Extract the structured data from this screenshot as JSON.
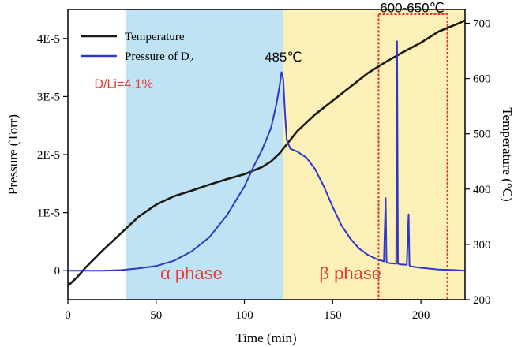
{
  "chart_data": {
    "type": "line",
    "xlabel": "Time (min)",
    "ylabel_left": "Pressure (Torr)",
    "ylabel_right": "Temperature (°C)",
    "xlim": [
      0,
      225
    ],
    "ylim_left": [
      -5e-06,
      4.5e-05
    ],
    "ylim_right": [
      200,
      725
    ],
    "x_ticks": [
      0,
      50,
      100,
      150,
      200
    ],
    "x_tick_labels": [
      "0",
      "50",
      "100",
      "150",
      "200"
    ],
    "y_left_ticks": [
      0,
      1e-05,
      2e-05,
      3e-05,
      4e-05
    ],
    "y_left_tick_labels": [
      "0",
      "1E-5",
      "2E-5",
      "3E-5",
      "4E-5"
    ],
    "y_right_ticks": [
      200,
      300,
      400,
      500,
      600,
      700
    ],
    "y_right_tick_labels": [
      "200",
      "300",
      "400",
      "500",
      "600",
      "700"
    ],
    "legend_position": "top-left",
    "colors": {
      "temperature": "#1a1a12",
      "pressure": "#2f37c8",
      "alpha_region": "#bfe3f5",
      "beta_region": "#fbf1b8",
      "annotation_red": "#e63a2e",
      "box": "#d93a2c"
    },
    "series": [
      {
        "name": "Temperature",
        "axis": "right",
        "x": [
          0,
          5,
          10,
          20,
          30,
          40,
          50,
          60,
          70,
          80,
          90,
          100,
          110,
          115,
          120,
          125,
          130,
          140,
          150,
          160,
          170,
          180,
          190,
          200,
          210,
          220,
          225
        ],
        "y": [
          225,
          240,
          258,
          290,
          320,
          350,
          372,
          387,
          397,
          408,
          418,
          427,
          440,
          450,
          465,
          485,
          505,
          535,
          560,
          585,
          610,
          630,
          648,
          665,
          685,
          698,
          705
        ]
      },
      {
        "name": "Pressure of D₂",
        "axis": "left",
        "x": [
          0,
          20,
          30,
          40,
          50,
          60,
          70,
          80,
          90,
          100,
          105,
          110,
          115,
          118,
          120,
          121,
          122,
          123,
          124,
          126,
          130,
          135,
          140,
          145,
          150,
          155,
          160,
          165,
          170,
          175,
          179,
          180,
          180.5,
          181,
          182,
          186,
          186.5,
          187,
          188,
          192,
          193,
          193.5,
          194,
          195,
          200,
          210,
          220,
          225
        ],
        "y": [
          0,
          0,
          1e-07,
          4e-07,
          8e-07,
          1.7e-06,
          3.3e-06,
          5.7e-06,
          9.5e-06,
          1.45e-05,
          1.78e-05,
          2.08e-05,
          2.45e-05,
          2.85e-05,
          3.2e-05,
          3.42e-05,
          3.3e-05,
          2.7e-05,
          2.25e-05,
          2.1e-05,
          2.05e-05,
          1.95e-05,
          1.75e-05,
          1.45e-05,
          1.1e-05,
          7.8e-06,
          5.5e-06,
          3.8e-06,
          2.7e-06,
          2e-06,
          1.6e-06,
          1.25e-05,
          1.6e-06,
          1.4e-06,
          1.3e-06,
          1.2e-06,
          3.95e-05,
          1.2e-06,
          1.1e-06,
          1e-06,
          9.7e-06,
          9e-07,
          8e-07,
          7e-07,
          5e-07,
          2e-07,
          1e-07,
          0
        ]
      }
    ],
    "regions": [
      {
        "x_start": 33,
        "x_end": 122,
        "label": "α phase"
      },
      {
        "x_start": 122,
        "x_end": 225,
        "label": "β phase"
      }
    ],
    "highlight_box": {
      "x_start": 176,
      "x_end": 215,
      "y_right_start": 200,
      "y_right_end": 705
    },
    "annotations": [
      {
        "text": "485℃",
        "x": 122,
        "y_left": 3.6e-05
      },
      {
        "text": "600-650℃",
        "x": 195,
        "y_left": 4.45e-05
      },
      {
        "text": "D/Li=4.1%",
        "x": 15,
        "y_left": 3.15e-05
      }
    ]
  }
}
